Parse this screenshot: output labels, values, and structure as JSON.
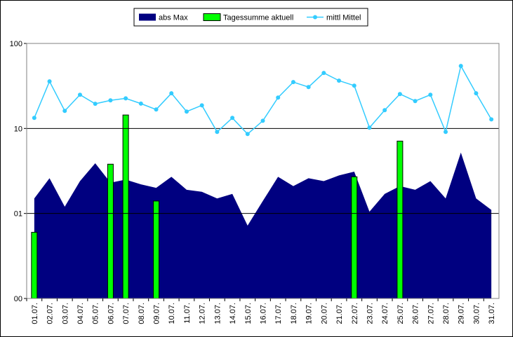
{
  "chart_data": {
    "type": "combo",
    "categories": [
      "01.07.",
      "02.07.",
      "03.07.",
      "04.07.",
      "05.07.",
      "06.07.",
      "07.07.",
      "08.07.",
      "09.07.",
      "10.07.",
      "11.07.",
      "12.07.",
      "13.07.",
      "14.07.",
      "15.07.",
      "16.07.",
      "17.07.",
      "18.07.",
      "19.07.",
      "20.07.",
      "21.07.",
      "22.07.",
      "23.07.",
      "24.07.",
      "25.07.",
      "26.07.",
      "27.07.",
      "28.07.",
      "29.07.",
      "30.07.",
      "31.07."
    ],
    "series": [
      {
        "name": "abs Max",
        "kind": "area",
        "color": "#000080",
        "values": [
          1.5,
          2.6,
          1.2,
          2.4,
          3.9,
          2.3,
          2.5,
          2.2,
          2.0,
          2.7,
          1.9,
          1.8,
          1.5,
          1.7,
          0.72,
          1.4,
          2.7,
          2.1,
          2.6,
          2.4,
          2.8,
          3.1,
          1.05,
          1.7,
          2.1,
          1.9,
          2.4,
          1.5,
          5.2,
          1.5,
          1.1
        ]
      },
      {
        "name": "Tagessumme aktuell",
        "kind": "bar",
        "color": "#00ff00",
        "values": [
          0.6,
          null,
          null,
          null,
          null,
          3.8,
          14.4,
          null,
          1.4,
          null,
          null,
          null,
          null,
          null,
          null,
          null,
          null,
          null,
          null,
          null,
          null,
          2.7,
          null,
          null,
          7.1,
          null,
          null,
          null,
          null,
          null,
          null
        ]
      },
      {
        "name": "mittl Mittel",
        "kind": "line",
        "color": "#33ccff",
        "values": [
          13.3,
          35.8,
          16.1,
          24.9,
          19.5,
          21.4,
          22.6,
          19.6,
          16.7,
          25.9,
          15.8,
          18.7,
          9.1,
          13.3,
          8.6,
          12.3,
          23.1,
          35.1,
          30.7,
          45,
          36.5,
          31.9,
          10.2,
          16.4,
          25.4,
          21,
          24.9,
          9.1,
          54.4,
          25.9,
          12.8
        ]
      }
    ],
    "ylim": [
      0.1,
      100
    ],
    "log_scale": true,
    "yticks": [
      100,
      10,
      {
        "value": 1,
        "label": "01"
      },
      {
        "value": 0.1,
        "label": "00"
      }
    ],
    "grid": true,
    "legend": "top"
  }
}
